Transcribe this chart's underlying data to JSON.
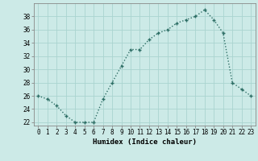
{
  "x": [
    0,
    1,
    2,
    3,
    4,
    5,
    6,
    7,
    8,
    9,
    10,
    11,
    12,
    13,
    14,
    15,
    16,
    17,
    18,
    19,
    20,
    21,
    22,
    23
  ],
  "y": [
    26,
    25.5,
    24.5,
    23,
    22,
    22,
    22,
    25.5,
    28,
    30.5,
    33,
    33,
    34.5,
    35.5,
    36,
    37,
    37.5,
    38,
    39,
    37.5,
    35.5,
    28,
    27,
    26
  ],
  "line_color": "#2d6e65",
  "marker": "+",
  "marker_size": 3.5,
  "marker_lw": 1.0,
  "bg_color": "#cceae7",
  "grid_color": "#aad4d0",
  "xlabel": "Humidex (Indice chaleur)",
  "xlim": [
    -0.5,
    23.5
  ],
  "ylim": [
    21.5,
    40
  ],
  "yticks": [
    22,
    24,
    26,
    28,
    30,
    32,
    34,
    36,
    38
  ],
  "xticks": [
    0,
    1,
    2,
    3,
    4,
    5,
    6,
    7,
    8,
    9,
    10,
    11,
    12,
    13,
    14,
    15,
    16,
    17,
    18,
    19,
    20,
    21,
    22,
    23
  ],
  "xlabel_fontsize": 6.5,
  "tick_fontsize": 5.5,
  "linewidth": 1.0,
  "dot_pattern": [
    1,
    2
  ]
}
